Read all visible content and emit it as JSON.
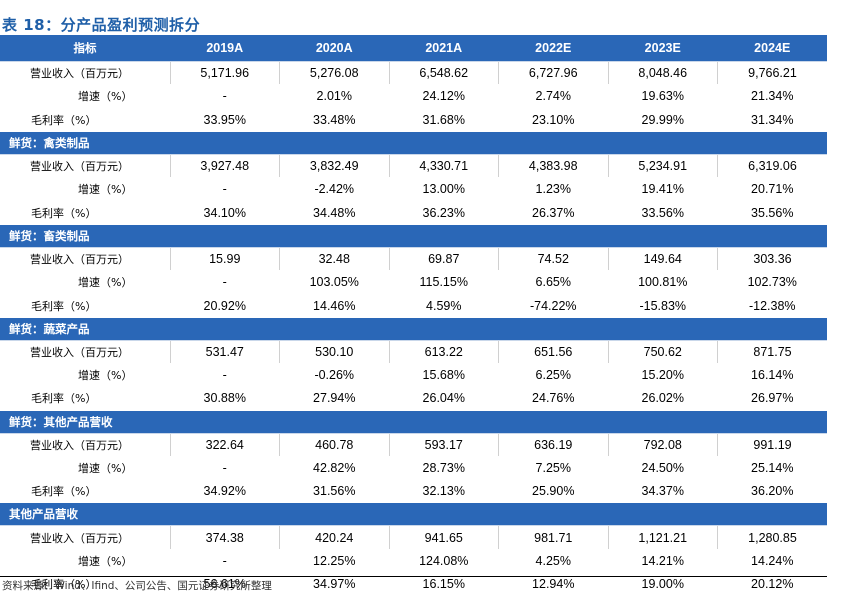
{
  "title": "表 18：分产品盈利预测拆分",
  "header": [
    "指标",
    "2019A",
    "2020A",
    "2021A",
    "2022E",
    "2023E",
    "2024E"
  ],
  "groups": [
    {
      "section": "",
      "rows": [
        {
          "label": "营业收入（百万元）",
          "values": [
            "5,171.96",
            "5,276.08",
            "6,548.62",
            "6,727.96",
            "8,048.46",
            "9,766.21"
          ]
        },
        {
          "label": "增速（%）",
          "values": [
            "-",
            "2.01%",
            "24.12%",
            "2.74%",
            "19.63%",
            "21.34%"
          ]
        },
        {
          "label": "毛利率（%）",
          "values": [
            "33.95%",
            "33.48%",
            "31.68%",
            "23.10%",
            "29.99%",
            "31.34%"
          ]
        }
      ]
    },
    {
      "section": "鲜货：禽类制品",
      "rows": [
        {
          "label": "营业收入（百万元）",
          "values": [
            "3,927.48",
            "3,832.49",
            "4,330.71",
            "4,383.98",
            "5,234.91",
            "6,319.06"
          ]
        },
        {
          "label": "增速（%）",
          "values": [
            "-",
            "-2.42%",
            "13.00%",
            "1.23%",
            "19.41%",
            "20.71%"
          ]
        },
        {
          "label": "毛利率（%）",
          "values": [
            "34.10%",
            "34.48%",
            "36.23%",
            "26.37%",
            "33.56%",
            "35.56%"
          ]
        }
      ]
    },
    {
      "section": "鲜货：畜类制品",
      "rows": [
        {
          "label": "营业收入（百万元）",
          "values": [
            "15.99",
            "32.48",
            "69.87",
            "74.52",
            "149.64",
            "303.36"
          ]
        },
        {
          "label": "增速（%）",
          "values": [
            "-",
            "103.05%",
            "115.15%",
            "6.65%",
            "100.81%",
            "102.73%"
          ]
        },
        {
          "label": "毛利率（%）",
          "values": [
            "20.92%",
            "14.46%",
            "4.59%",
            "-74.22%",
            "-15.83%",
            "-12.38%"
          ]
        }
      ]
    },
    {
      "section": "鲜货：蔬菜产品",
      "rows": [
        {
          "label": "营业收入（百万元）",
          "values": [
            "531.47",
            "530.10",
            "613.22",
            "651.56",
            "750.62",
            "871.75"
          ]
        },
        {
          "label": "增速（%）",
          "values": [
            "-",
            "-0.26%",
            "15.68%",
            "6.25%",
            "15.20%",
            "16.14%"
          ]
        },
        {
          "label": "毛利率（%）",
          "values": [
            "30.88%",
            "27.94%",
            "26.04%",
            "24.76%",
            "26.02%",
            "26.97%"
          ]
        }
      ]
    },
    {
      "section": "鲜货：其他产品营收",
      "rows": [
        {
          "label": "营业收入（百万元）",
          "values": [
            "322.64",
            "460.78",
            "593.17",
            "636.19",
            "792.08",
            "991.19"
          ]
        },
        {
          "label": "增速（%）",
          "values": [
            "-",
            "42.82%",
            "28.73%",
            "7.25%",
            "24.50%",
            "25.14%"
          ]
        },
        {
          "label": "毛利率（%）",
          "values": [
            "34.92%",
            "31.56%",
            "32.13%",
            "25.90%",
            "34.37%",
            "36.20%"
          ]
        }
      ]
    },
    {
      "section": "其他产品营收",
      "rows": [
        {
          "label": "营业收入（百万元）",
          "values": [
            "374.38",
            "420.24",
            "941.65",
            "981.71",
            "1,121.21",
            "1,280.85"
          ]
        },
        {
          "label": "增速（%）",
          "values": [
            "-",
            "12.25%",
            "124.08%",
            "4.25%",
            "14.21%",
            "14.24%"
          ]
        },
        {
          "label": "毛利率（%）",
          "values": [
            "56.61%",
            "34.97%",
            "16.15%",
            "12.94%",
            "19.00%",
            "20.12%"
          ]
        }
      ]
    }
  ],
  "source": "资料来源：Wind、Ifind、公司公告、国元证券研究所整理",
  "colors": {
    "title": "#1f5fa8",
    "header_bg": "#2a67b7",
    "header_text": "#ffffff"
  }
}
